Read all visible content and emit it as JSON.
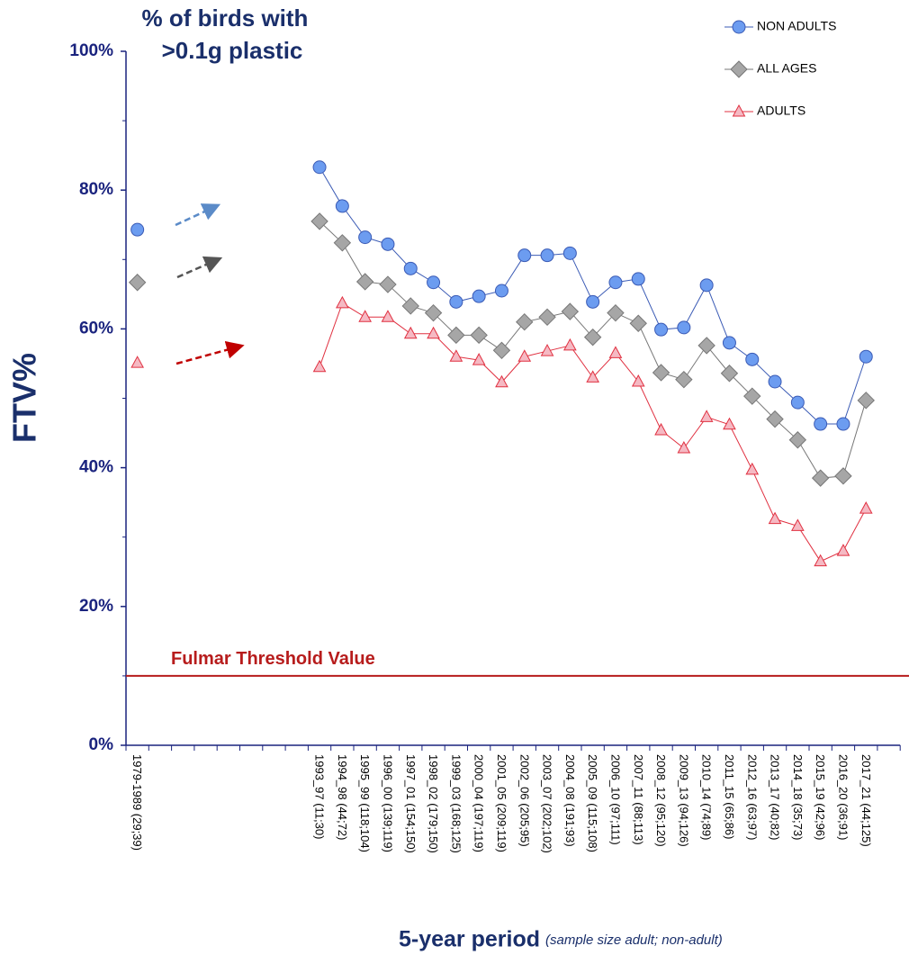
{
  "chart_data": {
    "type": "line",
    "title": [
      "% of birds with",
      ">0.1g plastic"
    ],
    "y_label": "FTV%",
    "x_label": "5-year period",
    "x_label_note": "(sample size adult; non-adult)",
    "categories": [
      "1979-1989 (29;39)",
      null,
      null,
      null,
      null,
      null,
      null,
      null,
      "1993_97 (11;30)",
      "1994_98 (44;72)",
      "1995_99 (118;104)",
      "1996_00 (139;119)",
      "1997_01 (154;150)",
      "1998_02 (179;150)",
      "1999_03 (168;125)",
      "2000_04 (197;119)",
      "2001_05 (209;119)",
      "2002_06 (205;95)",
      "2003_07 (202;102)",
      "2004_08 (191;93)",
      "2005_09 (115;108)",
      "2006_10 (97;111)",
      "2007_11 (88;113)",
      "2008_12 (95;120)",
      "2009_13 (94;126)",
      "2010_14 (74;89)",
      "2011_15 (65;86)",
      "2012_16 (63;97)",
      "2013_17 (40;82)",
      "2014_18 (35;73)",
      "2015_19 (42;96)",
      "2016_20 (36;91)",
      "2017_21 (44;125)",
      null
    ],
    "series": [
      {
        "name": "NON ADULTS",
        "color": "#3b5bb5",
        "marker": "circle",
        "fill": "#6c9cf0",
        "values": [
          74.3,
          null,
          null,
          null,
          null,
          null,
          null,
          null,
          83.3,
          77.7,
          73.2,
          72.2,
          68.7,
          66.7,
          63.9,
          64.7,
          65.5,
          70.6,
          70.6,
          70.9,
          63.9,
          66.7,
          67.2,
          59.9,
          60.2,
          66.3,
          58.0,
          55.6,
          52.4,
          49.4,
          46.3,
          46.3,
          56.0,
          null
        ]
      },
      {
        "name": "ALL AGES",
        "color": "#777777",
        "marker": "diamond",
        "fill": "#a6a6a6",
        "values": [
          66.7,
          null,
          null,
          null,
          null,
          null,
          null,
          null,
          75.5,
          72.4,
          66.8,
          66.4,
          63.3,
          62.3,
          59.1,
          59.1,
          56.9,
          61.0,
          61.7,
          62.5,
          58.8,
          62.3,
          60.8,
          53.7,
          52.7,
          57.6,
          53.6,
          50.3,
          47.0,
          44.0,
          38.5,
          38.8,
          49.7,
          null
        ]
      },
      {
        "name": "ADULTS",
        "color": "#e03040",
        "marker": "triangle",
        "fill": "#f5b9c3",
        "values": [
          55.1,
          null,
          null,
          null,
          null,
          null,
          null,
          null,
          54.5,
          63.7,
          61.7,
          61.7,
          59.3,
          59.3,
          56.0,
          55.5,
          52.3,
          56.0,
          56.8,
          57.6,
          53.0,
          56.5,
          52.4,
          45.4,
          42.8,
          47.3,
          46.2,
          39.7,
          32.6,
          31.6,
          26.5,
          28.0,
          34.1,
          null
        ]
      }
    ],
    "ylim": [
      0,
      100
    ],
    "yticks": [
      {
        "value": 0,
        "label": "0%"
      },
      {
        "value": 20,
        "label": "20%"
      },
      {
        "value": 40,
        "label": "40%"
      },
      {
        "value": 60,
        "label": "60%"
      },
      {
        "value": 80,
        "label": "80%"
      },
      {
        "value": 100,
        "label": "100%"
      }
    ],
    "threshold": {
      "label": "Fulmar Threshold Value",
      "value": 10,
      "color": "#b71c1c"
    },
    "legend": "top-right"
  }
}
